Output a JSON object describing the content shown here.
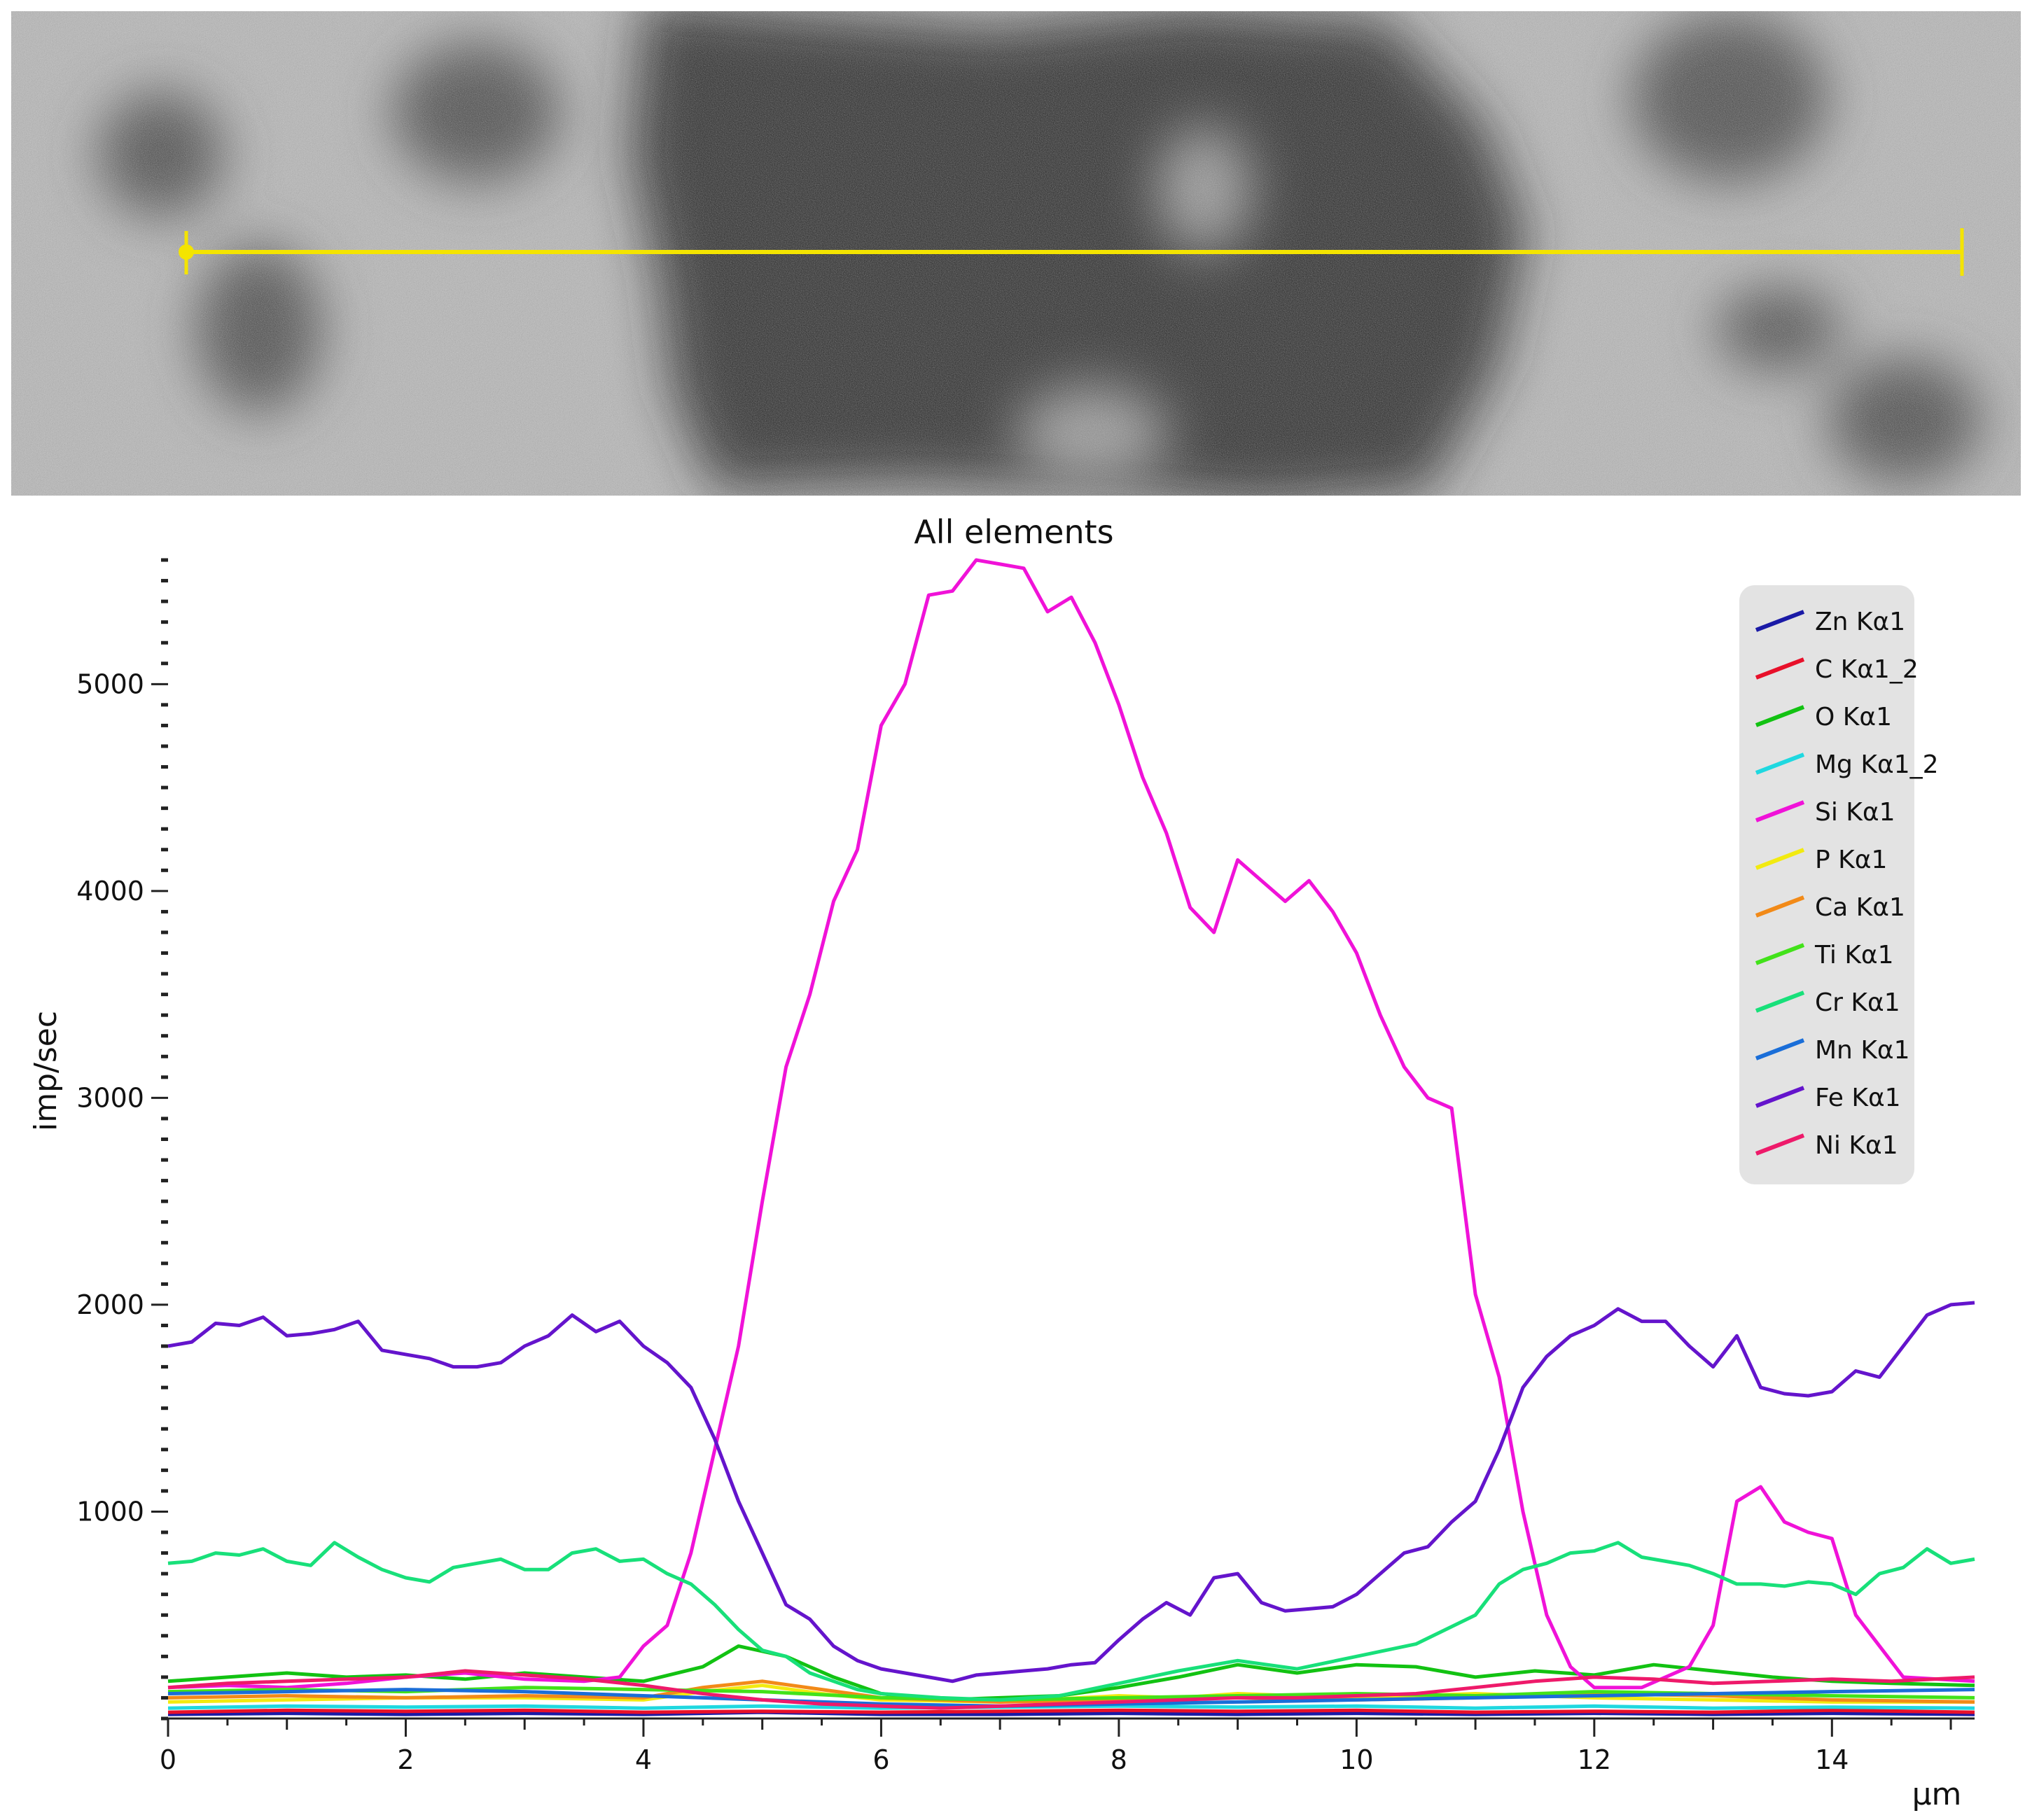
{
  "sem_image": {
    "description_icon": "sem-backscatter-micrograph",
    "line_color": "#f4e400"
  },
  "chart_data": {
    "type": "line",
    "title": "All elements",
    "xlabel": "µm",
    "ylabel": "imp/sec",
    "xlim": [
      0,
      15.2
    ],
    "ylim": [
      0,
      5600
    ],
    "xticks": [
      "0",
      "2",
      "4",
      "6",
      "8",
      "10",
      "12",
      "14"
    ],
    "xtick_values": [
      0,
      2,
      4,
      6,
      8,
      10,
      12,
      14
    ],
    "yticks": [
      "1000",
      "2000",
      "3000",
      "4000",
      "5000"
    ],
    "ytick_values": [
      1000,
      2000,
      3000,
      4000,
      5000
    ],
    "grid": false,
    "legend_position": "top-right",
    "series": [
      {
        "name": "Zn Kα1",
        "color": "#1a1aa6",
        "x": [
          0,
          1,
          2,
          3,
          4,
          5,
          6,
          7,
          8,
          9,
          10,
          11,
          12,
          13,
          14,
          15.2
        ],
        "y": [
          20,
          25,
          20,
          25,
          20,
          30,
          20,
          20,
          25,
          20,
          25,
          20,
          25,
          20,
          25,
          20
        ]
      },
      {
        "name": "C Kα1_2",
        "color": "#e8102a",
        "x": [
          0,
          1,
          2,
          3,
          4,
          5,
          6,
          7,
          8,
          9,
          10,
          11,
          12,
          13,
          14,
          15.2
        ],
        "y": [
          30,
          40,
          35,
          40,
          30,
          35,
          30,
          35,
          40,
          35,
          40,
          30,
          35,
          30,
          40,
          30
        ]
      },
      {
        "name": "O Kα1",
        "color": "#12c212",
        "x": [
          0,
          0.5,
          1,
          1.5,
          2,
          2.5,
          3,
          3.5,
          4,
          4.5,
          4.8,
          5.2,
          5.6,
          6,
          6.5,
          7,
          7.5,
          8,
          8.5,
          9,
          9.5,
          10,
          10.5,
          11,
          11.5,
          12,
          12.5,
          13,
          13.5,
          14,
          14.5,
          15.2
        ],
        "y": [
          180,
          200,
          220,
          200,
          210,
          190,
          220,
          200,
          180,
          250,
          350,
          300,
          200,
          120,
          90,
          100,
          110,
          150,
          200,
          260,
          220,
          260,
          250,
          200,
          230,
          210,
          260,
          230,
          200,
          180,
          170,
          160
        ]
      },
      {
        "name": "Mg Kα1_2",
        "color": "#1fd8e0",
        "x": [
          0,
          1,
          2,
          3,
          4,
          5,
          6,
          7,
          8,
          9,
          10,
          11,
          12,
          13,
          14,
          15.2
        ],
        "y": [
          50,
          60,
          55,
          60,
          50,
          60,
          50,
          55,
          60,
          55,
          60,
          50,
          60,
          50,
          55,
          50
        ]
      },
      {
        "name": "Si Kα1",
        "color": "#f012d8",
        "x": [
          0,
          0.5,
          1,
          1.5,
          2,
          2.5,
          3,
          3.5,
          3.8,
          4,
          4.2,
          4.4,
          4.6,
          4.8,
          5,
          5.2,
          5.4,
          5.6,
          5.8,
          6,
          6.2,
          6.4,
          6.6,
          6.8,
          7,
          7.2,
          7.4,
          7.6,
          7.8,
          8,
          8.2,
          8.4,
          8.6,
          8.8,
          9,
          9.2,
          9.4,
          9.6,
          9.8,
          10,
          10.2,
          10.4,
          10.6,
          10.8,
          11,
          11.2,
          11.4,
          11.6,
          11.8,
          12,
          12.4,
          12.8,
          13,
          13.2,
          13.4,
          13.6,
          13.8,
          14,
          14.2,
          14.6,
          15.2
        ],
        "y": [
          150,
          160,
          150,
          170,
          200,
          220,
          190,
          180,
          200,
          350,
          450,
          800,
          1300,
          1800,
          2500,
          3150,
          3500,
          3950,
          4200,
          4800,
          5000,
          5430,
          5450,
          5600,
          5580,
          5560,
          5350,
          5420,
          5200,
          4900,
          4550,
          4280,
          3920,
          3800,
          4150,
          4050,
          3950,
          4050,
          3900,
          3700,
          3400,
          3150,
          3000,
          2950,
          2050,
          1650,
          1000,
          500,
          250,
          150,
          150,
          250,
          450,
          1050,
          1120,
          950,
          900,
          870,
          500,
          200,
          180
        ]
      },
      {
        "name": "P Kα1",
        "color": "#f2ea10",
        "x": [
          0,
          1,
          2,
          3,
          4,
          4.5,
          5,
          5.5,
          6,
          7,
          8,
          8.5,
          9,
          9.5,
          10,
          10.5,
          11,
          12,
          13,
          14,
          15.2
        ],
        "y": [
          80,
          90,
          100,
          100,
          90,
          130,
          160,
          120,
          90,
          80,
          110,
          100,
          120,
          110,
          100,
          110,
          120,
          100,
          90,
          80,
          80
        ]
      },
      {
        "name": "Ca Kα1",
        "color": "#f28a18",
        "x": [
          0,
          1,
          2,
          3,
          4,
          4.5,
          5,
          5.5,
          6,
          7,
          8,
          9,
          10,
          11,
          12,
          13,
          14,
          15.2
        ],
        "y": [
          100,
          110,
          100,
          110,
          100,
          150,
          180,
          140,
          100,
          80,
          90,
          100,
          90,
          100,
          120,
          110,
          90,
          80
        ]
      },
      {
        "name": "Ti Kα1",
        "color": "#42e21a",
        "x": [
          0,
          1,
          2,
          3,
          4,
          5,
          6,
          7,
          8,
          9,
          10,
          11,
          12,
          13,
          14,
          15.2
        ],
        "y": [
          130,
          140,
          130,
          150,
          140,
          130,
          100,
          90,
          100,
          110,
          120,
          110,
          130,
          120,
          110,
          100
        ]
      },
      {
        "name": "Cr Kα1",
        "color": "#18e07a",
        "x": [
          0,
          0.2,
          0.4,
          0.6,
          0.8,
          1,
          1.2,
          1.4,
          1.6,
          1.8,
          2,
          2.2,
          2.4,
          2.6,
          2.8,
          3,
          3.2,
          3.4,
          3.6,
          3.8,
          4,
          4.2,
          4.4,
          4.6,
          4.8,
          5,
          5.2,
          5.4,
          5.6,
          5.8,
          6,
          6.5,
          7,
          7.5,
          8,
          8.5,
          9,
          9.5,
          10,
          10.5,
          11,
          11.2,
          11.4,
          11.6,
          11.8,
          12,
          12.2,
          12.4,
          12.6,
          12.8,
          13,
          13.2,
          13.4,
          13.6,
          13.8,
          14,
          14.2,
          14.4,
          14.6,
          14.8,
          15,
          15.2
        ],
        "y": [
          750,
          760,
          800,
          790,
          820,
          760,
          740,
          850,
          780,
          720,
          680,
          660,
          730,
          750,
          770,
          720,
          720,
          800,
          820,
          760,
          770,
          700,
          650,
          550,
          430,
          330,
          300,
          220,
          180,
          140,
          120,
          100,
          90,
          110,
          170,
          230,
          280,
          240,
          300,
          360,
          500,
          650,
          720,
          750,
          800,
          810,
          850,
          780,
          760,
          740,
          700,
          650,
          650,
          640,
          660,
          650,
          600,
          700,
          730,
          820,
          750,
          770
        ]
      },
      {
        "name": "Mn Kα1",
        "color": "#1a6ed8",
        "x": [
          0,
          1,
          2,
          3,
          4,
          5,
          6,
          7,
          8,
          9,
          10,
          11,
          12,
          13,
          14,
          15.2
        ],
        "y": [
          120,
          130,
          140,
          130,
          110,
          90,
          70,
          60,
          70,
          80,
          90,
          100,
          110,
          120,
          130,
          140
        ]
      },
      {
        "name": "Fe Kα1",
        "color": "#6414cc",
        "x": [
          0,
          0.2,
          0.4,
          0.6,
          0.8,
          1,
          1.2,
          1.4,
          1.6,
          1.8,
          2,
          2.2,
          2.4,
          2.6,
          2.8,
          3,
          3.2,
          3.4,
          3.6,
          3.8,
          4,
          4.2,
          4.4,
          4.6,
          4.8,
          5,
          5.2,
          5.4,
          5.6,
          5.8,
          6,
          6.2,
          6.4,
          6.6,
          6.8,
          7,
          7.2,
          7.4,
          7.6,
          7.8,
          8,
          8.2,
          8.4,
          8.6,
          8.8,
          9,
          9.2,
          9.4,
          9.6,
          9.8,
          10,
          10.2,
          10.4,
          10.6,
          10.8,
          11,
          11.2,
          11.4,
          11.6,
          11.8,
          12,
          12.2,
          12.4,
          12.6,
          12.8,
          13,
          13.2,
          13.4,
          13.6,
          13.8,
          14,
          14.2,
          14.4,
          14.6,
          14.8,
          15,
          15.2
        ],
        "y": [
          1800,
          1820,
          1910,
          1900,
          1940,
          1850,
          1860,
          1880,
          1920,
          1780,
          1760,
          1740,
          1700,
          1700,
          1720,
          1800,
          1850,
          1950,
          1870,
          1920,
          1800,
          1720,
          1600,
          1350,
          1050,
          800,
          550,
          480,
          350,
          280,
          240,
          220,
          200,
          180,
          210,
          220,
          230,
          240,
          260,
          270,
          380,
          480,
          560,
          500,
          680,
          700,
          560,
          520,
          530,
          540,
          600,
          700,
          800,
          830,
          950,
          1050,
          1300,
          1600,
          1750,
          1850,
          1900,
          1980,
          1920,
          1920,
          1800,
          1700,
          1850,
          1600,
          1570,
          1560,
          1580,
          1680,
          1650,
          1800,
          1950,
          2000,
          2010
        ]
      },
      {
        "name": "Ni Kα1",
        "color": "#ee1a6a",
        "x": [
          0,
          0.5,
          1,
          1.5,
          2,
          2.5,
          3,
          3.5,
          4,
          4.5,
          5,
          5.5,
          6,
          6.5,
          7,
          7.5,
          8,
          8.5,
          9,
          9.5,
          10,
          10.5,
          11,
          11.5,
          12,
          12.5,
          13,
          13.5,
          14,
          14.5,
          15.2
        ],
        "y": [
          150,
          170,
          180,
          190,
          200,
          230,
          210,
          190,
          160,
          120,
          90,
          70,
          60,
          50,
          60,
          70,
          80,
          90,
          100,
          100,
          110,
          120,
          150,
          180,
          200,
          190,
          170,
          180,
          190,
          180,
          200
        ]
      }
    ]
  }
}
